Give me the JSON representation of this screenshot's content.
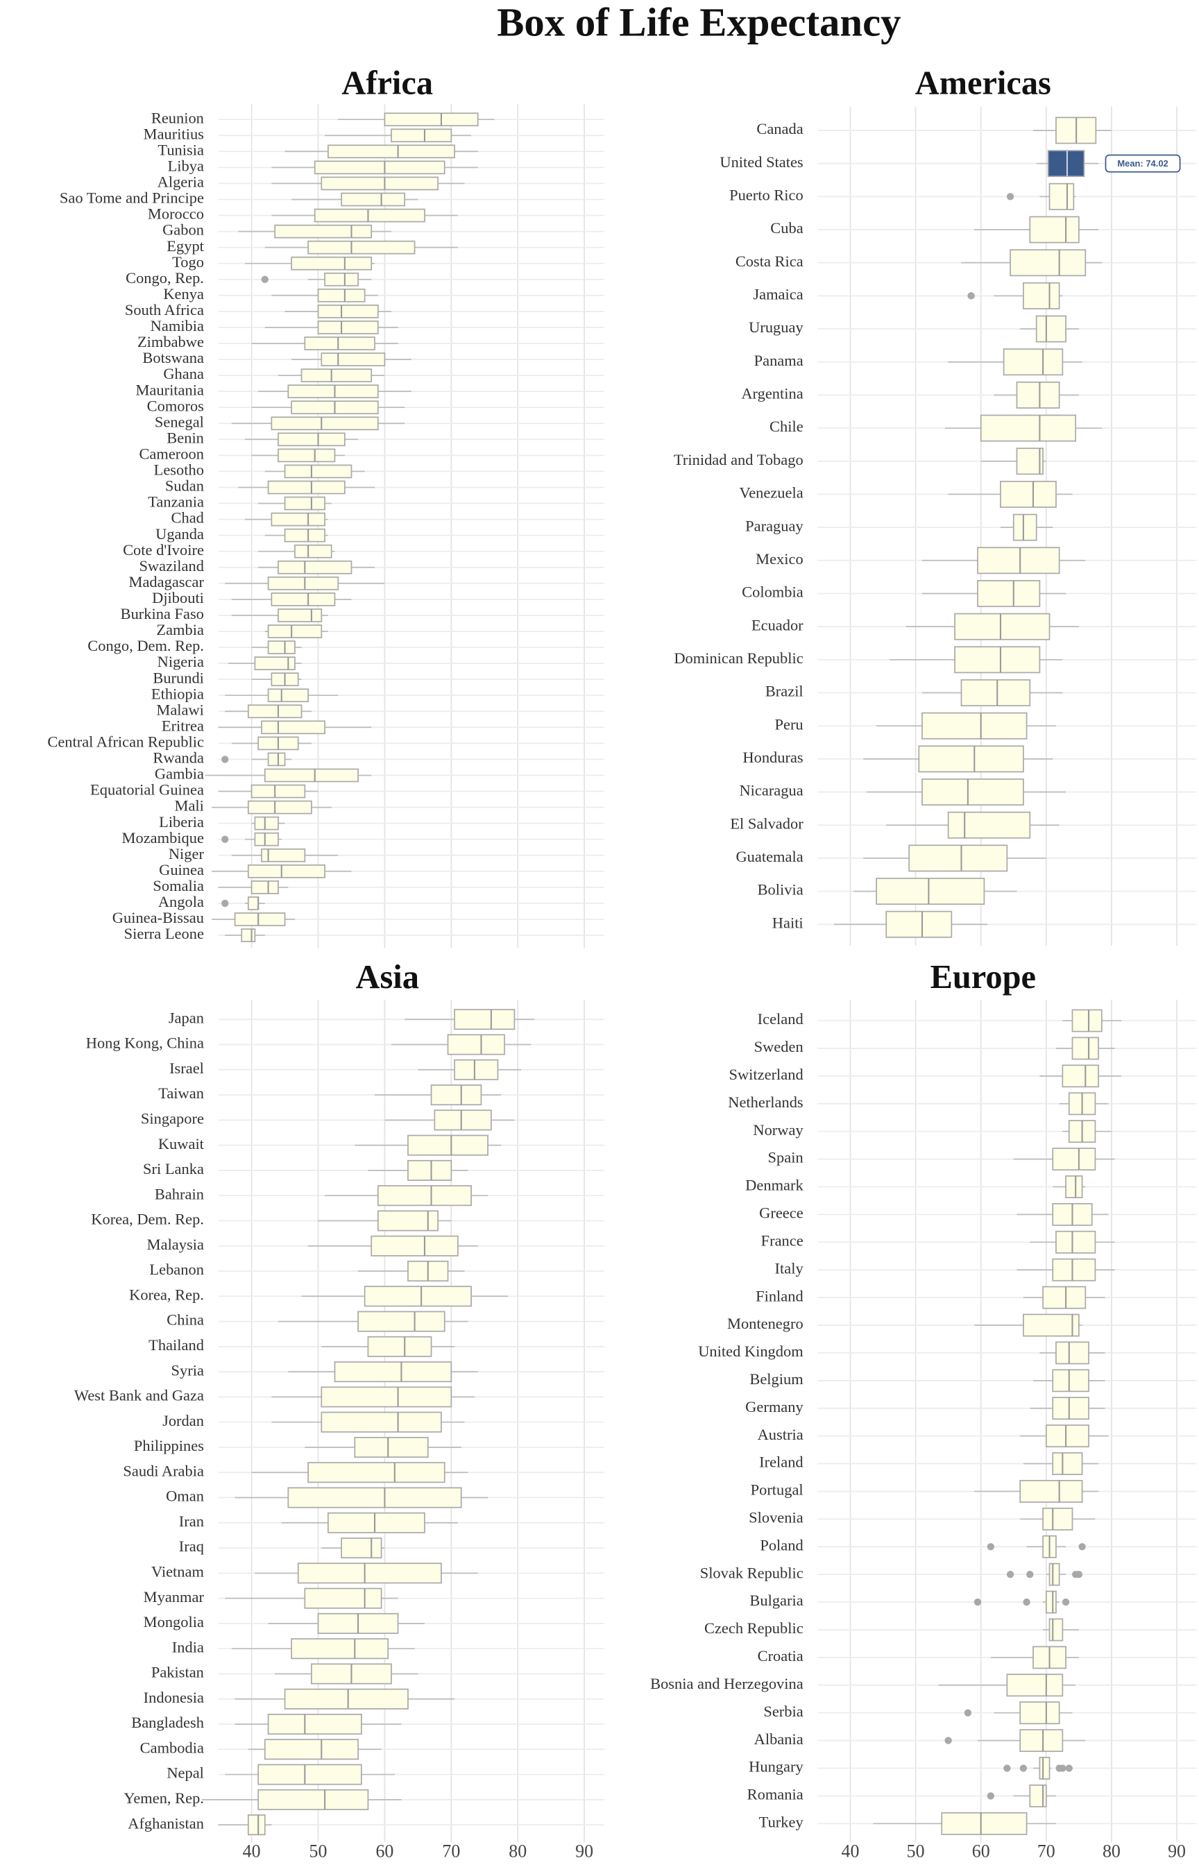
{
  "title": "Box of Life Expectancy",
  "chart_data": [
    {
      "type": "box",
      "title": "Africa",
      "xlim": [
        35,
        93
      ],
      "xticks": [
        40,
        50,
        60,
        70,
        80,
        90
      ],
      "grid": true,
      "color": "#fefee6",
      "line_color": "#aaaaaa",
      "categories": [
        "Reunion",
        "Mauritius",
        "Tunisia",
        "Libya",
        "Algeria",
        "Sao Tome and Principe",
        "Morocco",
        "Gabon",
        "Egypt",
        "Togo",
        "Congo, Rep.",
        "Kenya",
        "South Africa",
        "Namibia",
        "Zimbabwe",
        "Botswana",
        "Ghana",
        "Mauritania",
        "Comoros",
        "Senegal",
        "Benin",
        "Cameroon",
        "Lesotho",
        "Sudan",
        "Tanzania",
        "Chad",
        "Uganda",
        "Cote d'Ivoire",
        "Swaziland",
        "Madagascar",
        "Djibouti",
        "Burkina Faso",
        "Zambia",
        "Congo, Dem. Rep.",
        "Nigeria",
        "Burundi",
        "Ethiopia",
        "Malawi",
        "Eritrea",
        "Central African Republic",
        "Rwanda",
        "Gambia",
        "Equatorial Guinea",
        "Mali",
        "Liberia",
        "Mozambique",
        "Niger",
        "Guinea",
        "Somalia",
        "Angola",
        "Guinea-Bissau",
        "Sierra Leone"
      ],
      "values": [
        [
          53,
          60,
          68.5,
          74,
          76.5
        ],
        [
          51,
          61,
          66,
          70,
          73
        ],
        [
          45,
          51.5,
          62,
          70.5,
          74
        ],
        [
          43,
          49.5,
          60,
          69,
          74
        ],
        [
          43,
          50.5,
          60,
          68,
          72
        ],
        [
          46,
          53.5,
          59.5,
          63,
          65
        ],
        [
          43,
          49.5,
          57.5,
          66,
          71
        ],
        [
          38,
          43.5,
          55,
          58,
          61
        ],
        [
          42,
          48.5,
          55,
          64.5,
          71
        ],
        [
          39,
          46,
          54,
          58,
          58.5
        ],
        [
          48.5,
          51,
          54,
          56,
          58
        ],
        [
          43,
          50,
          54,
          57,
          59
        ],
        [
          45,
          50,
          53.5,
          59,
          61
        ],
        [
          42,
          50,
          53.5,
          59,
          62
        ],
        [
          40,
          48,
          53,
          58.5,
          62
        ],
        [
          46,
          50.5,
          53,
          60,
          64
        ],
        [
          44,
          47.5,
          52,
          58,
          60
        ],
        [
          41,
          45.5,
          52.5,
          59,
          64
        ],
        [
          40,
          46,
          52.5,
          59,
          63
        ],
        [
          37,
          43,
          50.5,
          59,
          63
        ],
        [
          39,
          44,
          50,
          54,
          56
        ],
        [
          40,
          44,
          49.5,
          52.5,
          54
        ],
        [
          42,
          45,
          49,
          55,
          57
        ],
        [
          38,
          42.5,
          49,
          54,
          58.5
        ],
        [
          41,
          45,
          49,
          51,
          52
        ],
        [
          39,
          43,
          48.5,
          51,
          51.5
        ],
        [
          42,
          45,
          48.5,
          51,
          51.5
        ],
        [
          41,
          46.5,
          48.5,
          52,
          52.5
        ],
        [
          41,
          44,
          48,
          55,
          58.5
        ],
        [
          36,
          42.5,
          48,
          53,
          60
        ],
        [
          37,
          43,
          48.5,
          52.5,
          55
        ],
        [
          37,
          44,
          49,
          50.5,
          51.5
        ],
        [
          42,
          42.5,
          46,
          50.5,
          51.5
        ],
        [
          40,
          42.5,
          45,
          46.5,
          47.5
        ],
        [
          36.5,
          40.5,
          45.5,
          46.5,
          47.5
        ],
        [
          40,
          43,
          45,
          47,
          47.5
        ],
        [
          36,
          42.5,
          44.5,
          48.5,
          53
        ],
        [
          36,
          39.5,
          44,
          47.5,
          49
        ],
        [
          35,
          41.5,
          44,
          51,
          58
        ],
        [
          37,
          41,
          44,
          47,
          49
        ],
        [
          40,
          42.5,
          44,
          45,
          46
        ],
        [
          33,
          42,
          49.5,
          56,
          58
        ],
        [
          35,
          40,
          43.5,
          48,
          50
        ],
        [
          34,
          39.5,
          43.5,
          49,
          52
        ],
        [
          40,
          40.5,
          42,
          44,
          45
        ],
        [
          39,
          40.5,
          42,
          44,
          44.5
        ],
        [
          37,
          41.5,
          42.5,
          48,
          53
        ],
        [
          34,
          39.5,
          44.5,
          51,
          55
        ],
        [
          35,
          40,
          42.5,
          44,
          45.5
        ],
        [
          39,
          39.5,
          41,
          41,
          42
        ],
        [
          34,
          37.5,
          41,
          45,
          46.5
        ],
        [
          36,
          38.5,
          40,
          40.5,
          42
        ]
      ],
      "outliers": [
        [],
        [],
        [],
        [],
        [],
        [],
        [],
        [],
        [],
        [],
        [
          42
        ],
        [],
        [],
        [],
        [],
        [],
        [],
        [],
        [],
        [],
        [],
        [],
        [],
        [],
        [],
        [],
        [],
        [],
        [],
        [],
        [],
        [],
        [],
        [],
        [],
        [],
        [],
        [],
        [],
        [],
        [
          36
        ],
        [],
        [],
        [],
        [],
        [
          36
        ],
        [],
        [],
        [],
        [
          36
        ],
        [],
        []
      ]
    },
    {
      "type": "box",
      "title": "Americas",
      "xlim": [
        35,
        93
      ],
      "xticks": [
        40,
        50,
        60,
        70,
        80,
        90
      ],
      "grid": true,
      "color": "#fefee6",
      "line_color": "#aaaaaa",
      "highlight": {
        "category": "United States",
        "color": "#3a5a8c",
        "tooltip": "Mean: 74.02"
      },
      "categories": [
        "Canada",
        "United States",
        "Puerto Rico",
        "Cuba",
        "Costa Rica",
        "Jamaica",
        "Uruguay",
        "Panama",
        "Argentina",
        "Chile",
        "Trinidad and Tobago",
        "Venezuela",
        "Paraguay",
        "Mexico",
        "Colombia",
        "Ecuador",
        "Dominican Republic",
        "Brazil",
        "Peru",
        "Honduras",
        "Nicaragua",
        "El Salvador",
        "Guatemala",
        "Bolivia",
        "Haiti"
      ],
      "values": [
        [
          68,
          71.5,
          74.6,
          77.6,
          80
        ],
        [
          68.5,
          70.3,
          73.2,
          75.8,
          78
        ],
        [
          69,
          70.5,
          73.2,
          74.2,
          74.5
        ],
        [
          59,
          67.5,
          73,
          75,
          78
        ],
        [
          57,
          64.5,
          72,
          76,
          78.5
        ],
        [
          62,
          66.5,
          70.5,
          72,
          72.5
        ],
        [
          66,
          68.5,
          70,
          73,
          75
        ],
        [
          55,
          63.5,
          69.5,
          72.5,
          75.5
        ],
        [
          62,
          65.5,
          69,
          72,
          75
        ],
        [
          54.5,
          60,
          69,
          74.5,
          78.5
        ],
        [
          60,
          65.5,
          69,
          69.5,
          70
        ],
        [
          55,
          63,
          68,
          71.5,
          74
        ],
        [
          63,
          65,
          66.5,
          68.5,
          71
        ],
        [
          51,
          59.5,
          66,
          72,
          76
        ],
        [
          51,
          59.5,
          65,
          69,
          73
        ],
        [
          48.5,
          56,
          63,
          70.5,
          75
        ],
        [
          46,
          56,
          63,
          69,
          72.5
        ],
        [
          51,
          57,
          62.5,
          67.5,
          72.5
        ],
        [
          44,
          51,
          60,
          67,
          71.5
        ],
        [
          42,
          50.5,
          59,
          66.5,
          71
        ],
        [
          42.5,
          51,
          58,
          66.5,
          73
        ],
        [
          45.5,
          55,
          57.5,
          67.5,
          72
        ],
        [
          42,
          49,
          57,
          64,
          70
        ],
        [
          40.5,
          44,
          52,
          60.5,
          65.5
        ],
        [
          37.5,
          45.5,
          51,
          55.5,
          61
        ]
      ],
      "outliers": [
        [],
        [],
        [
          64.5
        ],
        [],
        [],
        [
          58.5
        ],
        [],
        [],
        [],
        [],
        [],
        [],
        [],
        [],
        [],
        [],
        [],
        [],
        [],
        [],
        [],
        [],
        [],
        [],
        []
      ]
    },
    {
      "type": "box",
      "title": "Asia",
      "xlim": [
        35,
        93
      ],
      "xticks": [
        40,
        50,
        60,
        70,
        80,
        90
      ],
      "grid": true,
      "color": "#fefee6",
      "line_color": "#aaaaaa",
      "categories": [
        "Japan",
        "Hong Kong, China",
        "Israel",
        "Taiwan",
        "Singapore",
        "Kuwait",
        "Sri Lanka",
        "Bahrain",
        "Korea, Dem. Rep.",
        "Malaysia",
        "Lebanon",
        "Korea, Rep.",
        "China",
        "Thailand",
        "Syria",
        "West Bank and Gaza",
        "Jordan",
        "Philippines",
        "Saudi Arabia",
        "Oman",
        "Iran",
        "Iraq",
        "Vietnam",
        "Myanmar",
        "Mongolia",
        "India",
        "Pakistan",
        "Indonesia",
        "Bangladesh",
        "Cambodia",
        "Nepal",
        "Yemen, Rep.",
        "Afghanistan"
      ],
      "values": [
        [
          63,
          70.5,
          76,
          79.5,
          82.5
        ],
        [
          61,
          69.5,
          74.5,
          78,
          82
        ],
        [
          65,
          70.5,
          73.5,
          77,
          80.5
        ],
        [
          58.5,
          67,
          71.5,
          74.5,
          77.5
        ],
        [
          60,
          67.5,
          71.5,
          76,
          79.5
        ],
        [
          55.5,
          63.5,
          70,
          75.5,
          77.5
        ],
        [
          57.5,
          63.5,
          67,
          70,
          72.5
        ],
        [
          51,
          59,
          67,
          73,
          75.5
        ],
        [
          50,
          59,
          66.5,
          68,
          70
        ],
        [
          48.5,
          58,
          66,
          71,
          74
        ],
        [
          56,
          63.5,
          66.5,
          69.5,
          72
        ],
        [
          47.5,
          57,
          65.5,
          73,
          78.5
        ],
        [
          44,
          56,
          64.5,
          69,
          72.5
        ],
        [
          50.5,
          57.5,
          63,
          67,
          70.5
        ],
        [
          45.5,
          52.5,
          62.5,
          70,
          74
        ],
        [
          43,
          50.5,
          62,
          70,
          73.5
        ],
        [
          43,
          50.5,
          62,
          68.5,
          72
        ],
        [
          48,
          55.5,
          60.5,
          66.5,
          71.5
        ],
        [
          40,
          48.5,
          61.5,
          69,
          72.5
        ],
        [
          37.5,
          45.5,
          60,
          71.5,
          75.5
        ],
        [
          44.5,
          51.5,
          58.5,
          66,
          71
        ],
        [
          50.5,
          53.5,
          58,
          59.5,
          60
        ],
        [
          40.5,
          47,
          57,
          68.5,
          74
        ],
        [
          36,
          48,
          57,
          59.5,
          62
        ],
        [
          42.5,
          50,
          56,
          62,
          66
        ],
        [
          37,
          46,
          55.5,
          60.5,
          64.5
        ],
        [
          43.5,
          49,
          55,
          61,
          65
        ],
        [
          37.5,
          45,
          54.5,
          63.5,
          70.5
        ],
        [
          37.5,
          42.5,
          48,
          56.5,
          62.5
        ],
        [
          39.5,
          42,
          50.5,
          56,
          59.5
        ],
        [
          36,
          41,
          48,
          56.5,
          61.5
        ],
        [
          32.5,
          41,
          51,
          57.5,
          62.5
        ],
        [
          35,
          39.5,
          41,
          42,
          43
        ]
      ],
      "outliers": [
        [],
        [],
        [],
        [],
        [],
        [],
        [],
        [],
        [],
        [],
        [],
        [],
        [],
        [],
        [],
        [],
        [],
        [],
        [],
        [],
        [],
        [],
        [],
        [],
        [],
        [],
        [],
        [],
        [],
        [],
        [],
        [],
        []
      ]
    },
    {
      "type": "box",
      "title": "Europe",
      "xlim": [
        35,
        93
      ],
      "xticks": [
        40,
        50,
        60,
        70,
        80,
        90
      ],
      "grid": true,
      "color": "#fefee6",
      "line_color": "#aaaaaa",
      "categories": [
        "Iceland",
        "Sweden",
        "Switzerland",
        "Netherlands",
        "Norway",
        "Spain",
        "Denmark",
        "Greece",
        "France",
        "Italy",
        "Finland",
        "Montenegro",
        "United Kingdom",
        "Belgium",
        "Germany",
        "Austria",
        "Ireland",
        "Portugal",
        "Slovenia",
        "Poland",
        "Slovak Republic",
        "Bulgaria",
        "Czech Republic",
        "Croatia",
        "Bosnia and Herzegovina",
        "Serbia",
        "Albania",
        "Hungary",
        "Romania",
        "Turkey"
      ],
      "values": [
        [
          72.5,
          74,
          76.5,
          78.5,
          81.5
        ],
        [
          71.5,
          74,
          76.5,
          78,
          80.5
        ],
        [
          69,
          72.5,
          76,
          78,
          81.5
        ],
        [
          72,
          73.5,
          75.5,
          77.5,
          79.5
        ],
        [
          72.5,
          73.5,
          75.5,
          77.5,
          80
        ],
        [
          65,
          71,
          75,
          77.5,
          80.5
        ],
        [
          71,
          73,
          74.5,
          75.5,
          76
        ],
        [
          65.5,
          71,
          74,
          77,
          79.5
        ],
        [
          67.5,
          71.5,
          74,
          77.5,
          80.5
        ],
        [
          65.5,
          71,
          74,
          77.5,
          80.5
        ],
        [
          66.5,
          69.5,
          73,
          76,
          79
        ],
        [
          59,
          66.5,
          74,
          75,
          75.5
        ],
        [
          69,
          71.5,
          73.5,
          76.5,
          79
        ],
        [
          68,
          71,
          73.5,
          76.5,
          79
        ],
        [
          67.5,
          71,
          73.5,
          76.5,
          79
        ],
        [
          66,
          70,
          73,
          76.5,
          79.5
        ],
        [
          66.5,
          71,
          72.5,
          75.5,
          78
        ],
        [
          59,
          66,
          72,
          75.5,
          78
        ],
        [
          66,
          69.5,
          71,
          74,
          77.5
        ],
        [
          67,
          69.5,
          70.5,
          71.5,
          73
        ],
        [
          70,
          70.5,
          71,
          72,
          73
        ],
        [
          69.5,
          70,
          71,
          71.5,
          72
        ],
        [
          69.5,
          70.5,
          71,
          72.5,
          75
        ],
        [
          61.5,
          68,
          70.5,
          73,
          75
        ],
        [
          53.5,
          64,
          70,
          72.5,
          74.5
        ],
        [
          62,
          66,
          70,
          72,
          74
        ],
        [
          59.5,
          66,
          69.5,
          72.5,
          76
        ],
        [
          68,
          69,
          69.5,
          70.5,
          70.8
        ],
        [
          65,
          67.5,
          69.5,
          70,
          71.5
        ],
        [
          43.5,
          54,
          60,
          67,
          71.5
        ]
      ],
      "outliers": [
        [],
        [],
        [],
        [],
        [],
        [],
        [],
        [],
        [],
        [],
        [],
        [],
        [],
        [],
        [],
        [],
        [],
        [],
        [],
        [
          61.5,
          75.5
        ],
        [
          64.5,
          67.5,
          74.5,
          75
        ],
        [
          59.5,
          67,
          73
        ],
        [],
        [],
        [],
        [
          58
        ],
        [
          55
        ],
        [
          64,
          66.5,
          72,
          72.5,
          73.5
        ],
        [
          61.5
        ],
        []
      ]
    }
  ]
}
